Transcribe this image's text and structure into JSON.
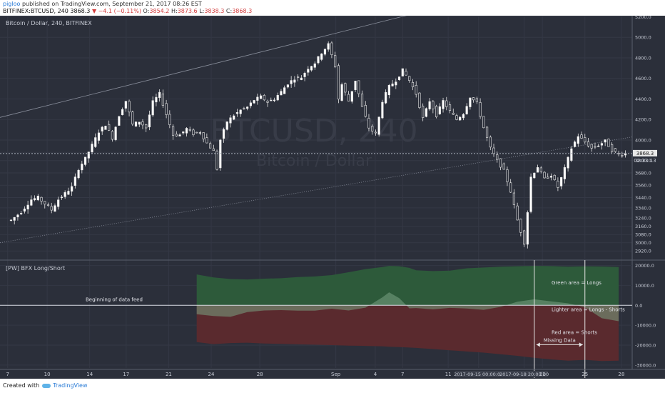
{
  "header": {
    "user": "pigloo",
    "published_text": "published on TradingView.com, September 21, 2017 08:26 EST",
    "symbol": "BITFINEX:BTCUSD, 240",
    "last": "3868.3",
    "change": "▼ −4.1 (−0.11%)",
    "o_label": "O:",
    "o": "3854.2",
    "h_label": "H:",
    "h": "3873.6",
    "l_label": "L:",
    "l": "3838.3",
    "c_label": "C:",
    "c": "3868.3"
  },
  "colors": {
    "bg": "#2b2f3a",
    "grid": "#343845",
    "text": "#c8ccd6",
    "candle_up": "#ffffff",
    "candle_down": "#ffffff",
    "longs": "#2d5a3a",
    "longs_light": "#7aa384",
    "shorts": "#5a2a2e",
    "shorts_light": "#b38a8c"
  },
  "main": {
    "title": "Bitcoin / Dollar, 240, BITFINEX",
    "watermark_symbol": "BTCUSD, 240",
    "watermark_name": "Bitcoin / Dollar",
    "price_tag": "3868.3",
    "countdown": "02:33:13"
  },
  "indicator": {
    "title": "[PW] BFX Long/Short",
    "annotation_begin": "Beginning of data feed",
    "annotation_missing": "Missing Data",
    "legend_green": "Green area = Longs",
    "legend_lighter": "Lighter area = Longs - Shorts",
    "legend_red": "Red area = Shorts"
  },
  "chart_data": [
    {
      "type": "candlestick",
      "title": "Bitcoin / Dollar, 240, BITFINEX",
      "x_ticks": [
        "7",
        "10",
        "14",
        "17",
        "21",
        "24",
        "28",
        "Sep",
        "4",
        "7",
        "11",
        "2017-09-15 00:00:00",
        "2017-09-18 20:00:00",
        "21",
        "25",
        "28"
      ],
      "y_ticks": [
        5200,
        5000,
        4800,
        4600,
        4400,
        4200,
        4000,
        3880,
        3800,
        3680,
        3560,
        3440,
        3340,
        3240,
        3160,
        3080,
        3000,
        2920
      ],
      "ylim": [
        2845,
        5210
      ],
      "last_price": 3868.3,
      "close_path": [
        [
          0,
          3220
        ],
        [
          3,
          3300
        ],
        [
          6,
          3420
        ],
        [
          8,
          3440
        ],
        [
          10,
          3380
        ],
        [
          12,
          3320
        ],
        [
          14,
          3420
        ],
        [
          18,
          3540
        ],
        [
          20,
          3720
        ],
        [
          22,
          3820
        ],
        [
          24,
          3950
        ],
        [
          26,
          4080
        ],
        [
          28,
          4150
        ],
        [
          30,
          4020
        ],
        [
          32,
          4240
        ],
        [
          34,
          4380
        ],
        [
          36,
          4150
        ],
        [
          38,
          4180
        ],
        [
          40,
          4120
        ],
        [
          42,
          4370
        ],
        [
          44,
          4450
        ],
        [
          46,
          4250
        ],
        [
          48,
          4050
        ],
        [
          50,
          4050
        ],
        [
          52,
          4110
        ],
        [
          54,
          4060
        ],
        [
          56,
          4080
        ],
        [
          58,
          3970
        ],
        [
          60,
          3890
        ],
        [
          61,
          3720
        ],
        [
          62,
          4000
        ],
        [
          64,
          4180
        ],
        [
          66,
          4240
        ],
        [
          68,
          4290
        ],
        [
          70,
          4320
        ],
        [
          72,
          4390
        ],
        [
          74,
          4420
        ],
        [
          76,
          4370
        ],
        [
          78,
          4400
        ],
        [
          80,
          4470
        ],
        [
          82,
          4550
        ],
        [
          84,
          4600
        ],
        [
          86,
          4610
        ],
        [
          88,
          4700
        ],
        [
          90,
          4750
        ],
        [
          92,
          4850
        ],
        [
          94,
          4930
        ],
        [
          96,
          4720
        ],
        [
          97,
          4400
        ],
        [
          98,
          4540
        ],
        [
          100,
          4380
        ],
        [
          102,
          4580
        ],
        [
          104,
          4320
        ],
        [
          106,
          4120
        ],
        [
          108,
          4060
        ],
        [
          110,
          4380
        ],
        [
          112,
          4520
        ],
        [
          114,
          4580
        ],
        [
          116,
          4680
        ],
        [
          118,
          4580
        ],
        [
          120,
          4450
        ],
        [
          122,
          4210
        ],
        [
          124,
          4380
        ],
        [
          126,
          4240
        ],
        [
          128,
          4380
        ],
        [
          130,
          4280
        ],
        [
          132,
          4200
        ],
        [
          134,
          4260
        ],
        [
          136,
          4420
        ],
        [
          138,
          4360
        ],
        [
          140,
          4120
        ],
        [
          142,
          3920
        ],
        [
          144,
          3800
        ],
        [
          146,
          3700
        ],
        [
          148,
          3500
        ],
        [
          150,
          3220
        ],
        [
          152,
          3000
        ],
        [
          153,
          3300
        ],
        [
          154,
          3640
        ],
        [
          156,
          3740
        ],
        [
          158,
          3620
        ],
        [
          160,
          3660
        ],
        [
          162,
          3540
        ],
        [
          164,
          3720
        ],
        [
          166,
          3920
        ],
        [
          168,
          4040
        ],
        [
          170,
          3980
        ],
        [
          172,
          3920
        ],
        [
          174,
          3950
        ],
        [
          176,
          3990
        ],
        [
          178,
          3900
        ],
        [
          180,
          3860
        ],
        [
          182,
          3868
        ]
      ]
    },
    {
      "type": "area",
      "title": "[PW] BFX Long/Short",
      "y_ticks": [
        20000,
        10000,
        0,
        -10000,
        -20000,
        -30000
      ],
      "ylim": [
        -31500,
        22000
      ],
      "x": [
        55,
        60,
        65,
        70,
        75,
        80,
        85,
        90,
        95,
        100,
        105,
        110,
        112,
        115,
        118,
        120,
        125,
        130,
        135,
        140,
        145,
        150,
        155,
        160,
        165,
        170,
        175,
        180
      ],
      "series": [
        {
          "name": "Longs",
          "values": [
            15500,
            14000,
            13200,
            13000,
            13400,
            13600,
            14200,
            14500,
            15200,
            16600,
            18200,
            19200,
            19800,
            19600,
            18800,
            17600,
            17200,
            17400,
            18600,
            19000,
            19400,
            19600,
            19800,
            19700,
            19400,
            19600,
            19500,
            19200
          ]
        },
        {
          "name": "Shorts",
          "values": [
            -18500,
            -19500,
            -19000,
            -18800,
            -19200,
            -19400,
            -19600,
            -19800,
            -20000,
            -20300,
            -20400,
            -20600,
            -20800,
            -21000,
            -21200,
            -21400,
            -22000,
            -22600,
            -23200,
            -23800,
            -24600,
            -25400,
            -26400,
            -27200,
            -27800,
            -27400,
            -28000,
            -27800
          ]
        },
        {
          "name": "Longs - Shorts",
          "values": [
            -4500,
            -5400,
            -5800,
            -3400,
            -2600,
            -2400,
            -2700,
            -2700,
            -1700,
            -2600,
            -1200,
            4000,
            6500,
            3600,
            -1500,
            -1400,
            -2000,
            -1300,
            -1600,
            -2300,
            -800,
            1800,
            3000,
            2000,
            1000,
            -1000,
            -6500,
            -8000
          ]
        }
      ],
      "markers": [
        {
          "label": "2017-09-15 00:00:00",
          "x": 155
        },
        {
          "label": "2017-09-18 20:00:00",
          "x": 170
        }
      ],
      "missing_span": [
        155,
        170
      ]
    }
  ]
}
